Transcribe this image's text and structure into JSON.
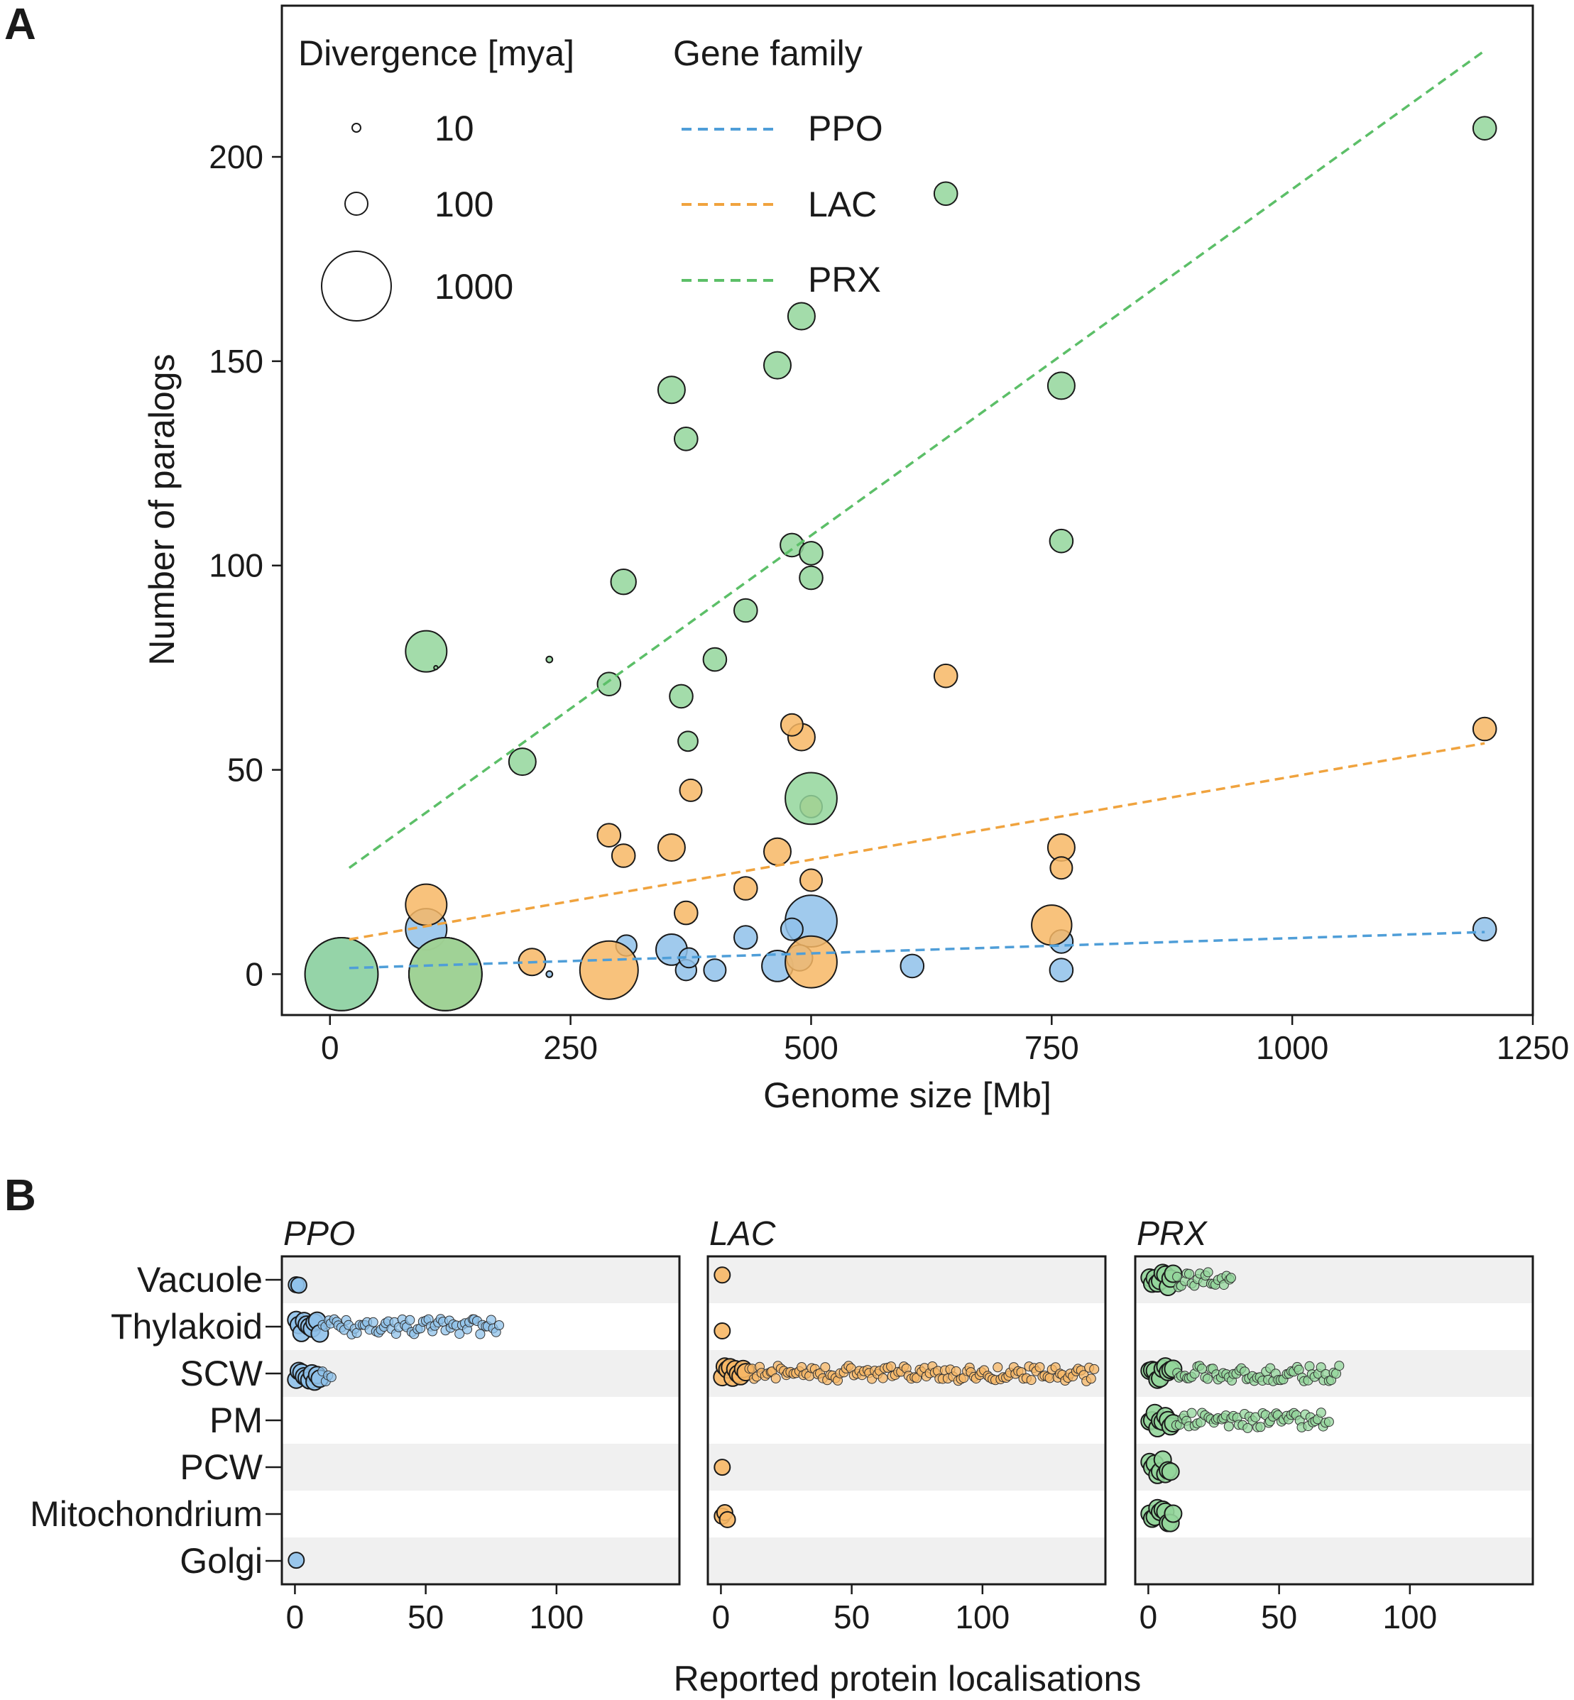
{
  "panels": {
    "a_letter": "A",
    "b_letter": "B"
  },
  "colors": {
    "PPO": "#8fc1ea",
    "LAC": "#f7b765",
    "PRX": "#93d69b",
    "PPO_line": "#4f9ed8",
    "LAC_line": "#f0a33e",
    "PRX_line": "#5cbf68",
    "stripe": "#f0f0f0"
  },
  "chart_data": [
    {
      "type": "scatter",
      "panel": "A",
      "xlabel": "Genome size [Mb]",
      "ylabel": "Number of paralogs",
      "xlim": [
        -50,
        1250
      ],
      "ylim": [
        -10,
        237
      ],
      "xticks": [
        0,
        250,
        500,
        750,
        1000,
        1250
      ],
      "yticks": [
        0,
        50,
        100,
        150,
        200
      ],
      "xtick_labels": [
        "0",
        "250",
        "500",
        "750",
        "1000",
        "1250"
      ],
      "ytick_labels": [
        "0",
        "50",
        "100",
        "150",
        "200"
      ],
      "size_legend": {
        "title": "Divergence [mya]",
        "entries": [
          {
            "label": "10",
            "value": 10
          },
          {
            "label": "100",
            "value": 100
          },
          {
            "label": "1000",
            "value": 1000
          }
        ]
      },
      "color_legend": {
        "title": "Gene family",
        "entries": [
          {
            "label": "PPO",
            "key": "PPO"
          },
          {
            "label": "LAC",
            "key": "LAC"
          },
          {
            "label": "PRX",
            "key": "PRX"
          }
        ]
      },
      "trend_lines": [
        {
          "family": "PPO",
          "x": [
            20,
            1200
          ],
          "y": [
            1.5,
            10.3
          ]
        },
        {
          "family": "LAC",
          "x": [
            20,
            1200
          ],
          "y": [
            8.5,
            56.5
          ]
        },
        {
          "family": "PRX",
          "x": [
            20,
            1200
          ],
          "y": [
            26,
            226
          ]
        }
      ],
      "series": [
        {
          "name": "PPO",
          "points": [
            [
              12,
              0,
              1100
            ],
            [
              100,
              11,
              350
            ],
            [
              120,
              0,
              1100
            ],
            [
              228,
              0,
              8
            ],
            [
              308,
              7,
              90
            ],
            [
              355,
              6,
              200
            ],
            [
              370,
              1,
              90
            ],
            [
              373,
              4,
              80
            ],
            [
              400,
              1,
              100
            ],
            [
              432,
              9,
              110
            ],
            [
              465,
              2,
              200
            ],
            [
              480,
              11,
              100
            ],
            [
              488,
              4,
              140
            ],
            [
              500,
              13,
              550
            ],
            [
              605,
              2,
              110
            ],
            [
              760,
              8,
              110
            ],
            [
              760,
              1,
              110
            ],
            [
              1200,
              11,
              110
            ]
          ]
        },
        {
          "name": "LAC",
          "points": [
            [
              100,
              17,
              350
            ],
            [
              120,
              0,
              1100
            ],
            [
              210,
              3,
              150
            ],
            [
              290,
              34,
              110
            ],
            [
              290,
              1,
              700
            ],
            [
              305,
              29,
              110
            ],
            [
              355,
              31,
              150
            ],
            [
              370,
              15,
              110
            ],
            [
              375,
              45,
              100
            ],
            [
              432,
              21,
              110
            ],
            [
              465,
              30,
              150
            ],
            [
              480,
              61,
              100
            ],
            [
              490,
              58,
              150
            ],
            [
              500,
              23,
              100
            ],
            [
              500,
              41,
              100
            ],
            [
              500,
              3,
              550
            ],
            [
              640,
              73,
              110
            ],
            [
              750,
              12,
              330
            ],
            [
              760,
              31,
              150
            ],
            [
              760,
              26,
              100
            ],
            [
              1200,
              60,
              110
            ]
          ]
        },
        {
          "name": "PRX",
          "points": [
            [
              12,
              0,
              1100
            ],
            [
              100,
              79,
              350
            ],
            [
              120,
              0,
              1100
            ],
            [
              110,
              75,
              3
            ],
            [
              200,
              52,
              150
            ],
            [
              228,
              77,
              8
            ],
            [
              290,
              71,
              110
            ],
            [
              305,
              96,
              130
            ],
            [
              355,
              143,
              150
            ],
            [
              365,
              68,
              110
            ],
            [
              370,
              131,
              110
            ],
            [
              372,
              57,
              80
            ],
            [
              400,
              77,
              110
            ],
            [
              432,
              89,
              110
            ],
            [
              465,
              149,
              150
            ],
            [
              480,
              105,
              110
            ],
            [
              490,
              161,
              150
            ],
            [
              500,
              103,
              110
            ],
            [
              500,
              97,
              110
            ],
            [
              500,
              43,
              550
            ],
            [
              640,
              191,
              110
            ],
            [
              760,
              144,
              150
            ],
            [
              760,
              106,
              110
            ],
            [
              1200,
              207,
              110
            ]
          ]
        }
      ]
    },
    {
      "type": "scatter",
      "panel": "B",
      "xlabel": "Reported protein localisations",
      "xlim": [
        -5,
        147
      ],
      "xticks": [
        0,
        50,
        100
      ],
      "xtick_labels": [
        "0",
        "50",
        "100"
      ],
      "categories": [
        "Vacuole",
        "Thylakoid",
        "SCW",
        "PM",
        "PCW",
        "Mitochondrium",
        "Golgi"
      ],
      "facets": [
        {
          "title": "PPO",
          "family": "PPO",
          "counts": [
            2,
            78,
            14,
            0,
            0,
            0,
            1
          ]
        },
        {
          "title": "LAC",
          "family": "LAC",
          "counts": [
            1,
            1,
            143,
            0,
            1,
            3,
            0
          ]
        },
        {
          "title": "PRX",
          "family": "PRX",
          "counts": [
            32,
            0,
            73,
            69,
            9,
            10,
            0
          ]
        }
      ]
    }
  ]
}
